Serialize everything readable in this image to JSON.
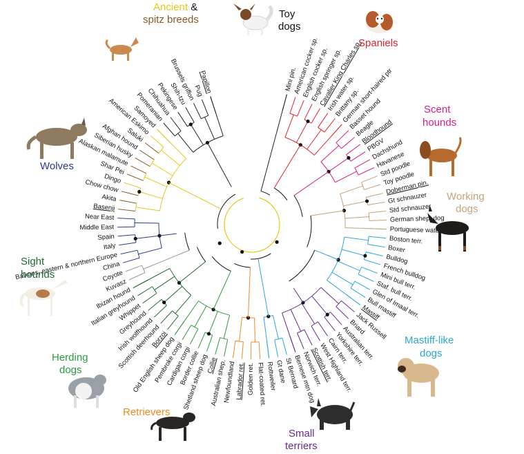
{
  "tree": {
    "groups": [
      {
        "key": "ancient",
        "label": "Ancient",
        "label_suffix": " &",
        "label_line2": "spitz breeds",
        "color": "#e7c51b",
        "color2": "#8b5a2b"
      },
      {
        "key": "toy",
        "label": "Toy",
        "label_line2": "dogs",
        "color": "#222222"
      },
      {
        "key": "spaniels",
        "label": "Spaniels",
        "color": "#e0242d"
      },
      {
        "key": "scent",
        "label": "Scent",
        "label_line2": "hounds",
        "color": "#d81b8a"
      },
      {
        "key": "working",
        "label": "Working",
        "label_line2": "dogs",
        "color": "#c4a27a"
      },
      {
        "key": "mastiff",
        "label": "Mastiff-like",
        "label_line2": "dogs",
        "color": "#2aa6d9"
      },
      {
        "key": "terriers",
        "label": "Small",
        "label_line2": "terriers",
        "color": "#6a2a8c"
      },
      {
        "key": "retrievers",
        "label": "Retrievers",
        "color": "#f08a1c"
      },
      {
        "key": "herding",
        "label": "Herding",
        "label_line2": "dogs",
        "color": "#2c9a3c"
      },
      {
        "key": "sight",
        "label": "Sight",
        "label_line2": "hounds",
        "color": "#1f6b34"
      },
      {
        "key": "wolves",
        "label": "Wolves",
        "color": "#2b3a8f"
      }
    ],
    "leaves": [
      {
        "name": "Mini pin.",
        "group": "toy"
      },
      {
        "name": "American cocker sp.",
        "group": "spaniels"
      },
      {
        "name": "English cocker sp.",
        "group": "spaniels"
      },
      {
        "name": "English springer sp.",
        "group": "spaniels"
      },
      {
        "name": "Cavalier King Charles sp.",
        "group": "spaniels",
        "underline": true
      },
      {
        "name": "Irish water sp.",
        "group": "spaniels"
      },
      {
        "name": "Brittany sp.",
        "group": "spaniels"
      },
      {
        "name": "German short-haired ptr",
        "group": "spaniels"
      },
      {
        "name": "Basset hound",
        "group": "scent"
      },
      {
        "name": "Beagle",
        "group": "scent"
      },
      {
        "name": "Bloodhound",
        "group": "scent",
        "underline": true
      },
      {
        "name": "PBGV",
        "group": "scent"
      },
      {
        "name": "Dachshund",
        "group": "scent"
      },
      {
        "name": "Havanese",
        "group": "scent"
      },
      {
        "name": "Std poodle",
        "group": "working"
      },
      {
        "name": "Toy poodle",
        "group": "working"
      },
      {
        "name": "Doberman pin.",
        "group": "working",
        "underline": true
      },
      {
        "name": "Gt schnauzer",
        "group": "working"
      },
      {
        "name": "Std schnauzer",
        "group": "working"
      },
      {
        "name": "German shep. dog",
        "group": "working"
      },
      {
        "name": "Portuguese water dog",
        "group": "working"
      },
      {
        "name": "Boston terr.",
        "group": "mastiff"
      },
      {
        "name": "Boxer",
        "group": "mastiff"
      },
      {
        "name": "Bulldog",
        "group": "mastiff"
      },
      {
        "name": "French bulldog",
        "group": "mastiff"
      },
      {
        "name": "Mini bull terr.",
        "group": "mastiff"
      },
      {
        "name": "Staf. bull terr.",
        "group": "mastiff"
      },
      {
        "name": "Glen of Imaal terr.",
        "group": "mastiff"
      },
      {
        "name": "Bull mastiff",
        "group": "mastiff"
      },
      {
        "name": "Mastiff",
        "group": "mastiff",
        "underline": true
      },
      {
        "name": "Jack Russell",
        "group": "terriers"
      },
      {
        "name": "Briard",
        "group": "terriers"
      },
      {
        "name": "Australian terr.",
        "group": "terriers"
      },
      {
        "name": "Yorkshire terr.",
        "group": "terriers"
      },
      {
        "name": "Cairn terr.",
        "group": "terriers"
      },
      {
        "name": "West Highland terr.",
        "group": "terriers"
      },
      {
        "name": "Scottish terr.",
        "group": "terriers",
        "underline": true
      },
      {
        "name": "Norwich terr.",
        "group": "terriers"
      },
      {
        "name": "Bernese mtn dog",
        "group": "terriers"
      },
      {
        "name": "St Bernard",
        "group": "mastiff"
      },
      {
        "name": "Gt dane",
        "group": "mastiff"
      },
      {
        "name": "Rottweiler",
        "group": "mastiff"
      },
      {
        "name": "Flat-coated ret.",
        "group": "retrievers"
      },
      {
        "name": "Golden ret.",
        "group": "retrievers"
      },
      {
        "name": "Labrador ret.",
        "group": "retrievers",
        "underline": true
      },
      {
        "name": "Newfoundland",
        "group": "retrievers"
      },
      {
        "name": "Australian shep.",
        "group": "herding"
      },
      {
        "name": "Collie",
        "group": "herding",
        "underline": true
      },
      {
        "name": "Shetland sheep dog",
        "group": "herding"
      },
      {
        "name": "Border collie",
        "group": "herding"
      },
      {
        "name": "Cardigan corgi",
        "group": "herding"
      },
      {
        "name": "Pembroke corgi",
        "group": "herding"
      },
      {
        "name": "Old English sheep dog",
        "group": "herding"
      },
      {
        "name": "Borzoi",
        "group": "sight",
        "underline": true
      },
      {
        "name": "Scottish deerhound",
        "group": "sight"
      },
      {
        "name": "Irish wolfhound",
        "group": "sight"
      },
      {
        "name": "Greyhound",
        "group": "sight"
      },
      {
        "name": "Whippet",
        "group": "sight"
      },
      {
        "name": "Italian greyhound",
        "group": "sight"
      },
      {
        "name": "Ibizan hound",
        "group": "sight"
      },
      {
        "name": "Kuvasz",
        "group": "outgroup"
      },
      {
        "name": "Coyote",
        "group": "outgroup"
      },
      {
        "name": "China",
        "group": "wolves"
      },
      {
        "name": "Balkans, eastern & northern Europe",
        "group": "wolves"
      },
      {
        "name": "Italy",
        "group": "wolves"
      },
      {
        "name": "Spain",
        "group": "wolves"
      },
      {
        "name": "Middle East",
        "group": "wolves"
      },
      {
        "name": "Near East",
        "group": "wolves"
      },
      {
        "name": "Basenji",
        "group": "ancient",
        "underline": true
      },
      {
        "name": "Akita",
        "group": "ancient"
      },
      {
        "name": "Chow chow",
        "group": "ancient"
      },
      {
        "name": "Dingo",
        "group": "ancient"
      },
      {
        "name": "Shar Pei",
        "group": "ancient"
      },
      {
        "name": "Alaskan malamute",
        "group": "ancient"
      },
      {
        "name": "Siberian husky",
        "group": "ancient"
      },
      {
        "name": "Afghan hound",
        "group": "ancient"
      },
      {
        "name": "Saluki",
        "group": "ancient"
      },
      {
        "name": "American Eskimo",
        "group": "ancient"
      },
      {
        "name": "Samoyed",
        "group": "ancient"
      },
      {
        "name": "Pomeranian",
        "group": "toy"
      },
      {
        "name": "Chihuahua",
        "group": "toy"
      },
      {
        "name": "Pekingese",
        "group": "toy"
      },
      {
        "name": "Shih-tzu",
        "group": "toy"
      },
      {
        "name": "Brussels griffon",
        "group": "toy"
      },
      {
        "name": "Pug",
        "group": "toy"
      },
      {
        "name": "Papillon",
        "group": "toy",
        "underline": true
      }
    ]
  },
  "images": [
    {
      "key": "basenji",
      "icon": "basenji-illustration"
    },
    {
      "key": "papillon",
      "icon": "papillon-illustration"
    },
    {
      "key": "cavalier",
      "icon": "cavalier-illustration"
    },
    {
      "key": "bloodhound",
      "icon": "bloodhound-illustration"
    },
    {
      "key": "doberman",
      "icon": "doberman-illustration"
    },
    {
      "key": "mastiff",
      "icon": "mastiff-illustration"
    },
    {
      "key": "scottie",
      "icon": "scottish-terrier-illustration"
    },
    {
      "key": "labrador",
      "icon": "labrador-illustration"
    },
    {
      "key": "collie",
      "icon": "collie-illustration"
    },
    {
      "key": "borzoi",
      "icon": "borzoi-illustration"
    },
    {
      "key": "wolf",
      "icon": "wolf-illustration"
    }
  ]
}
